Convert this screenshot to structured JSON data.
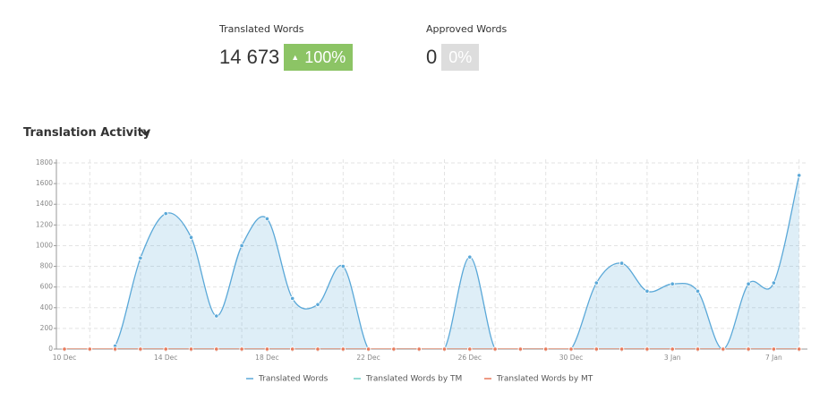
{
  "stats": [
    {
      "label": "Translated Words",
      "value": "14 673",
      "change": "100%"
    },
    {
      "label": "Approved Words",
      "value": "0",
      "change": "0%"
    }
  ],
  "chart_data": {
    "type": "area",
    "title": "Translation Activity",
    "categories": [
      "10 Dec",
      null,
      null,
      null,
      "14 Dec",
      null,
      null,
      null,
      "18 Dec",
      null,
      null,
      null,
      "22 Dec",
      null,
      null,
      null,
      "26 Dec",
      null,
      null,
      null,
      "30 Dec",
      null,
      null,
      null,
      "3 Jan",
      null,
      null,
      null,
      "7 Jan",
      null
    ],
    "series": [
      {
        "name": "Translated Words",
        "color": "#5aa8d8",
        "values": [
          0,
          0,
          30,
          880,
          1310,
          1080,
          320,
          1000,
          1260,
          490,
          430,
          800,
          0,
          0,
          0,
          0,
          890,
          0,
          0,
          0,
          0,
          640,
          830,
          560,
          630,
          560,
          0,
          630,
          640,
          1680
        ]
      },
      {
        "name": "Translated Words by TM",
        "color": "#6fcfc4",
        "values": [
          0,
          0,
          0,
          0,
          0,
          0,
          0,
          0,
          0,
          0,
          0,
          0,
          0,
          0,
          0,
          0,
          0,
          0,
          0,
          0,
          0,
          0,
          0,
          0,
          0,
          0,
          0,
          0,
          0,
          0
        ]
      },
      {
        "name": "Translated Words by MT",
        "color": "#e8795a",
        "values": [
          0,
          0,
          0,
          0,
          0,
          0,
          0,
          0,
          0,
          0,
          0,
          0,
          0,
          0,
          0,
          0,
          0,
          0,
          0,
          0,
          0,
          0,
          0,
          0,
          0,
          0,
          0,
          0,
          0,
          0
        ]
      }
    ],
    "ylim": [
      0,
      1800
    ],
    "yticks": [
      0,
      200,
      400,
      600,
      800,
      1000,
      1200,
      1400,
      1600,
      1800
    ],
    "grid": true
  }
}
